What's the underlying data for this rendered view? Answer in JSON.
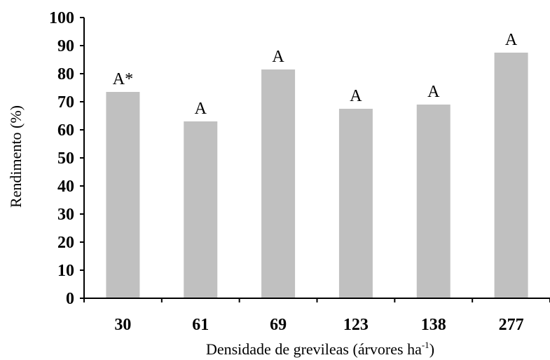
{
  "chart_data": {
    "type": "bar",
    "categories": [
      "30",
      "61",
      "69",
      "123",
      "138",
      "277"
    ],
    "values": [
      73.5,
      63,
      81.5,
      67.5,
      69,
      87.5
    ],
    "labels": [
      "A*",
      "A",
      "A",
      "A",
      "A",
      "A"
    ],
    "ylabel": "Rendimento (%)",
    "xlabel_main": "Densidade de grevileas (árvores ha",
    "xlabel_sup": "-1",
    "xlabel_close": ")",
    "ylim": [
      0,
      100
    ],
    "yticks": [
      "0",
      "10",
      "20",
      "30",
      "40",
      "50",
      "60",
      "70",
      "80",
      "90",
      "100"
    ],
    "grid": false,
    "bar_color": "#c0c0c0"
  }
}
